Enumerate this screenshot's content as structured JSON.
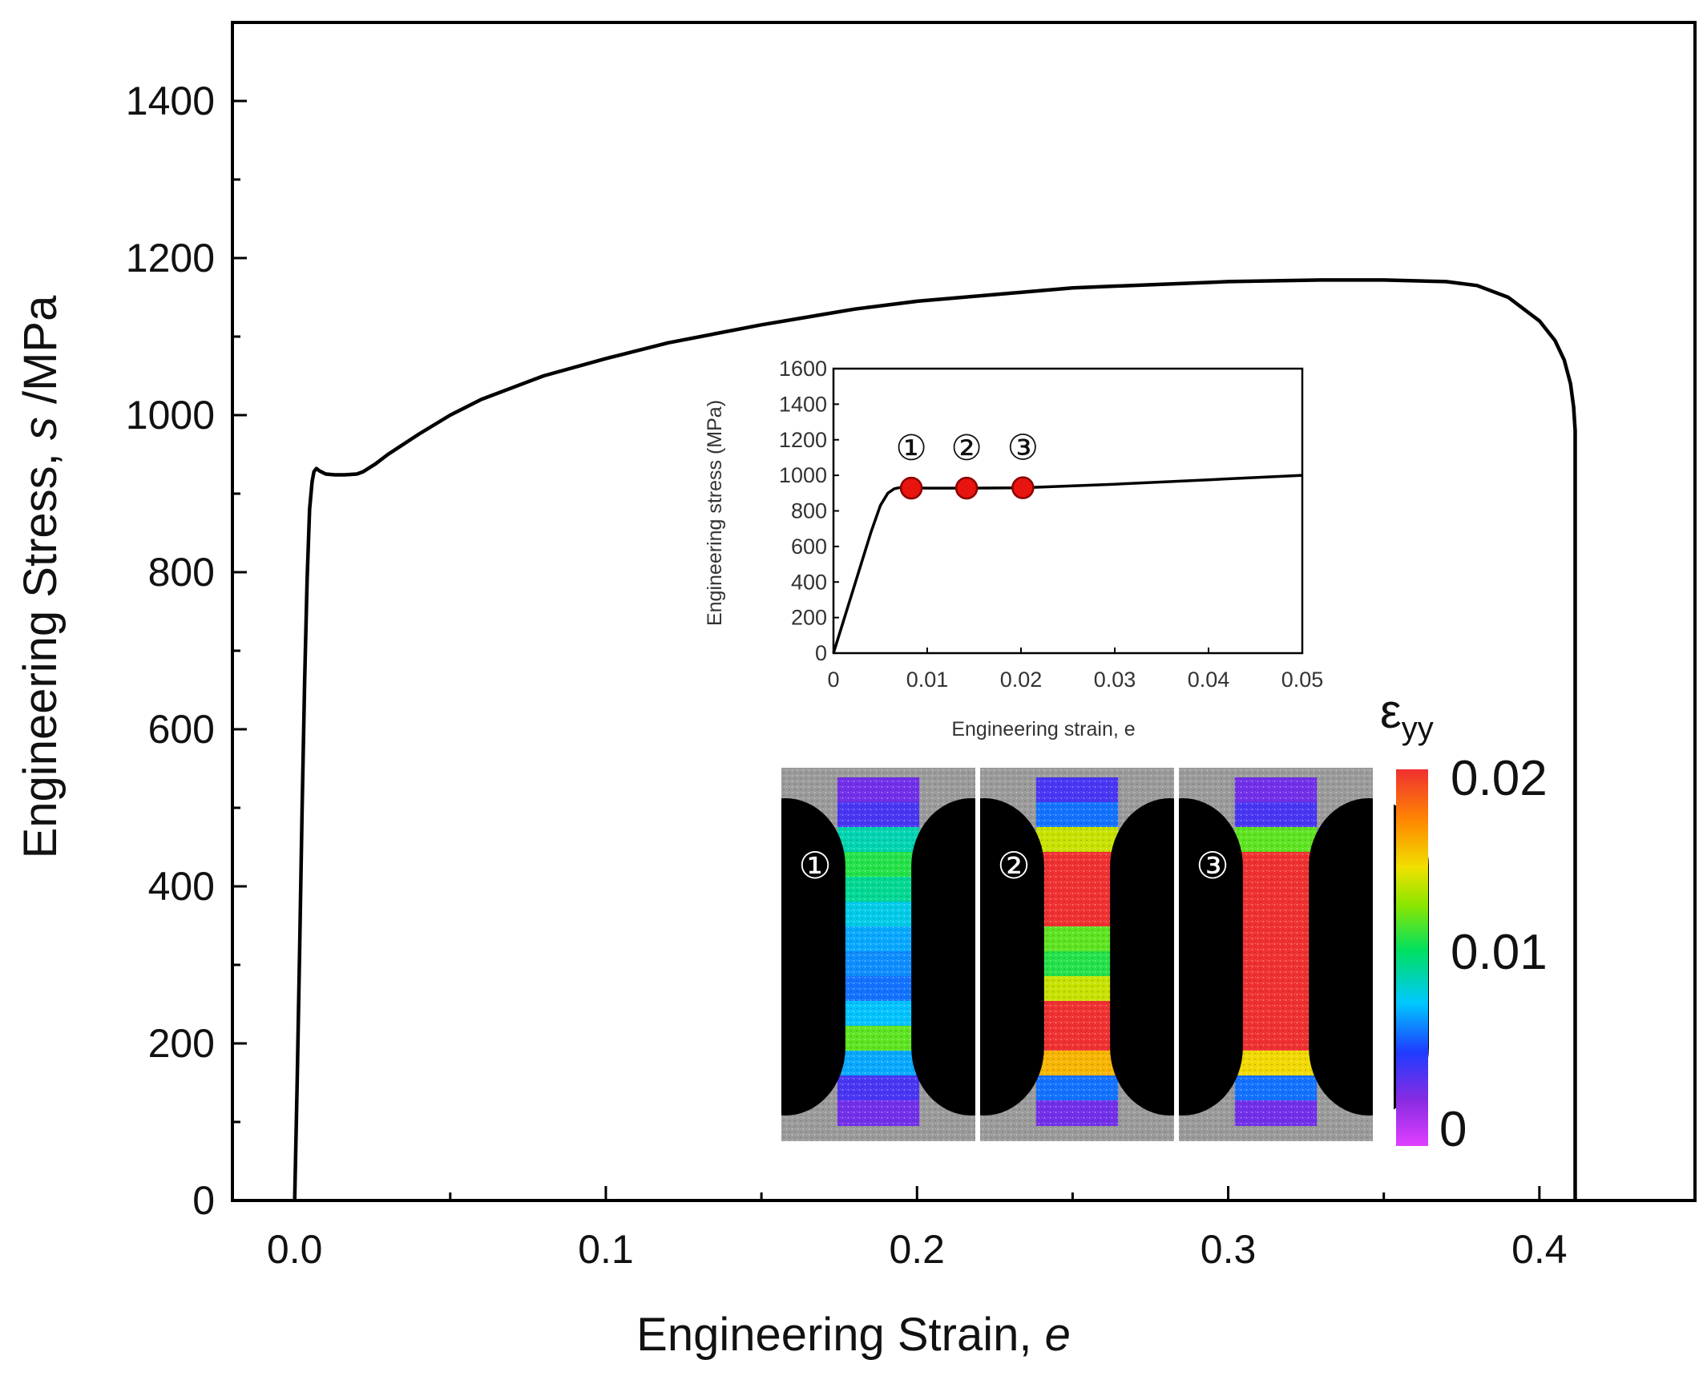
{
  "chart_data": [
    {
      "type": "line",
      "name": "main",
      "xlabel": "Engineering Strain, ",
      "xlabel_var": "e",
      "ylabel": "Engineering Stress, ",
      "ylabel_var": "s",
      "ylabel_unit": " /MPa",
      "xlim": [
        -0.02,
        0.45
      ],
      "ylim": [
        0,
        1500
      ],
      "xticks": [
        0.0,
        0.1,
        0.2,
        0.3,
        0.4
      ],
      "xtick_labels": [
        "0.0",
        "0.1",
        "0.2",
        "0.3",
        "0.4"
      ],
      "yticks": [
        0,
        200,
        400,
        600,
        800,
        1000,
        1200,
        1400
      ],
      "ytick_labels": [
        "0",
        "200",
        "400",
        "600",
        "800",
        "1000",
        "1200",
        "1400"
      ],
      "series": [
        {
          "name": "stress-strain",
          "x": [
            0.0,
            0.0008,
            0.0016,
            0.0024,
            0.0032,
            0.004,
            0.0048,
            0.0056,
            0.0062,
            0.007,
            0.008,
            0.01,
            0.013,
            0.016,
            0.02,
            0.022,
            0.026,
            0.03,
            0.04,
            0.05,
            0.06,
            0.08,
            0.1,
            0.12,
            0.15,
            0.18,
            0.2,
            0.25,
            0.3,
            0.33,
            0.35,
            0.37,
            0.38,
            0.39,
            0.4,
            0.405,
            0.408,
            0.41,
            0.411,
            0.4115
          ],
          "y": [
            0,
            150,
            320,
            500,
            660,
            790,
            880,
            915,
            928,
            932,
            929,
            925,
            924,
            924,
            925,
            928,
            938,
            950,
            976,
            1000,
            1020,
            1050,
            1072,
            1092,
            1115,
            1135,
            1145,
            1162,
            1170,
            1172,
            1172,
            1170,
            1165,
            1150,
            1120,
            1095,
            1070,
            1040,
            1010,
            980
          ]
        }
      ]
    },
    {
      "type": "line",
      "name": "inset",
      "xlabel": "Engineering strain, e",
      "ylabel": "Engineering stress (MPa)",
      "xlim": [
        0,
        0.05
      ],
      "ylim": [
        0,
        1600
      ],
      "xticks": [
        0,
        0.01,
        0.02,
        0.03,
        0.04,
        0.05
      ],
      "xtick_labels": [
        "0",
        "0.01",
        "0.02",
        "0.03",
        "0.04",
        "0.05"
      ],
      "yticks": [
        0,
        200,
        400,
        600,
        800,
        1000,
        1200,
        1400,
        1600
      ],
      "ytick_labels": [
        "0",
        "200",
        "400",
        "600",
        "800",
        "1000",
        "1200",
        "1400",
        "1600"
      ],
      "series": [
        {
          "name": "initial region",
          "x": [
            0.0,
            0.001,
            0.002,
            0.003,
            0.004,
            0.005,
            0.0058,
            0.0065,
            0.0072,
            0.008,
            0.01,
            0.014,
            0.02,
            0.03,
            0.04,
            0.05
          ],
          "y": [
            0,
            170,
            340,
            510,
            680,
            830,
            900,
            925,
            932,
            930,
            928,
            928,
            930,
            950,
            975,
            1000
          ]
        }
      ],
      "markers": [
        {
          "label": "①",
          "x": 0.0083,
          "y": 928
        },
        {
          "label": "②",
          "x": 0.0142,
          "y": 928
        },
        {
          "label": "③",
          "x": 0.0202,
          "y": 930
        }
      ]
    }
  ],
  "strain_maps": {
    "panels": [
      {
        "label": "①",
        "bands": [
          0.003,
          0.004,
          0.009,
          0.011,
          0.0095,
          0.008,
          0.007,
          0.0065,
          0.006,
          0.0075,
          0.012,
          0.007,
          0.004,
          0.003
        ]
      },
      {
        "label": "②",
        "bands": [
          0.004,
          0.006,
          0.014,
          0.02,
          0.02,
          0.02,
          0.012,
          0.011,
          0.014,
          0.02,
          0.02,
          0.016,
          0.006,
          0.003
        ]
      },
      {
        "label": "③",
        "bands": [
          0.003,
          0.004,
          0.012,
          0.02,
          0.02,
          0.02,
          0.02,
          0.02,
          0.02,
          0.02,
          0.02,
          0.015,
          0.006,
          0.003
        ]
      }
    ],
    "colorbar": {
      "title": "ε",
      "title_sub": "yy",
      "min": 0,
      "max": 0.02,
      "tick_labels": [
        "0.02",
        "0.01",
        "0"
      ]
    }
  },
  "colors": {
    "curve": "#000000",
    "marker_fill": "#e8140f",
    "marker_stroke": "#8a0000"
  }
}
